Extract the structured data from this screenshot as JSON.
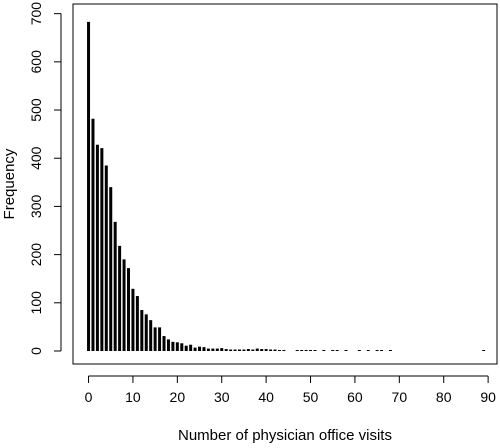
{
  "chart_data": {
    "type": "bar",
    "title": "",
    "xlabel": "Number of physician office visits",
    "ylabel": "Frequency",
    "xlim": [
      -3.5,
      92
    ],
    "ylim": [
      -27,
      720
    ],
    "xticks": [
      0,
      10,
      20,
      30,
      40,
      50,
      60,
      70,
      80,
      90
    ],
    "yticks": [
      0,
      100,
      200,
      300,
      400,
      500,
      600,
      700
    ],
    "grid": false,
    "legend": "none",
    "x": [
      0,
      1,
      2,
      3,
      4,
      5,
      6,
      7,
      8,
      9,
      10,
      11,
      12,
      13,
      14,
      15,
      16,
      17,
      18,
      19,
      20,
      21,
      22,
      23,
      24,
      25,
      26,
      27,
      28,
      29,
      30,
      31,
      32,
      33,
      34,
      35,
      36,
      37,
      38,
      39,
      40,
      41,
      42,
      43,
      44,
      47,
      48,
      49,
      50,
      51,
      53,
      55,
      56,
      58,
      61,
      63,
      65,
      66,
      68,
      89
    ],
    "values": [
      683,
      482,
      428,
      421,
      385,
      340,
      268,
      218,
      190,
      172,
      129,
      114,
      85,
      76,
      64,
      49,
      49,
      31,
      24,
      19,
      18,
      16,
      11,
      13,
      7,
      9,
      8,
      5,
      5,
      5,
      6,
      4,
      3,
      3,
      3,
      3,
      4,
      3,
      5,
      4,
      4,
      3,
      3,
      2,
      2,
      2,
      2,
      2,
      2,
      2,
      2,
      2,
      2,
      2,
      2,
      2,
      2,
      2,
      2,
      2
    ]
  },
  "style": {
    "bar_color": "#000000",
    "axis_color": "#000000",
    "background": "#ffffff"
  }
}
